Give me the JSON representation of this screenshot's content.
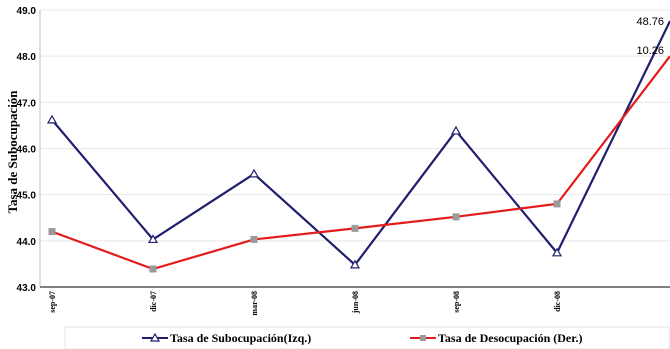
{
  "chart_data": {
    "type": "line",
    "ylabel": "Tasa de Subocupación",
    "x": [
      "sep-07",
      "dic-07",
      "mar-08",
      "jun-08",
      "sep-08",
      "dic-08",
      ""
    ],
    "ylim": [
      43.0,
      49.0
    ],
    "yticks": [
      "43.0",
      "44.0",
      "45.0",
      "46.0",
      "47.0",
      "48.0",
      "49.0"
    ],
    "grid": true,
    "legend_position": "bottom",
    "series": [
      {
        "name": "Tasa de Subocupación(Izq.)",
        "axis": "left",
        "color": "#1f1f6e",
        "marker": "triangle",
        "values": [
          46.62,
          44.03,
          45.45,
          43.48,
          46.38,
          43.74,
          48.76
        ],
        "end_label": "48.76"
      },
      {
        "name": "Tasa de Desocupación (Der.)",
        "axis": "right",
        "color": "#e31b1b",
        "marker": "square",
        "values_on_left_scale": [
          44.2,
          43.39,
          44.03,
          44.27,
          44.52,
          44.8,
          48.0
        ],
        "end_label": "10.26"
      }
    ]
  }
}
